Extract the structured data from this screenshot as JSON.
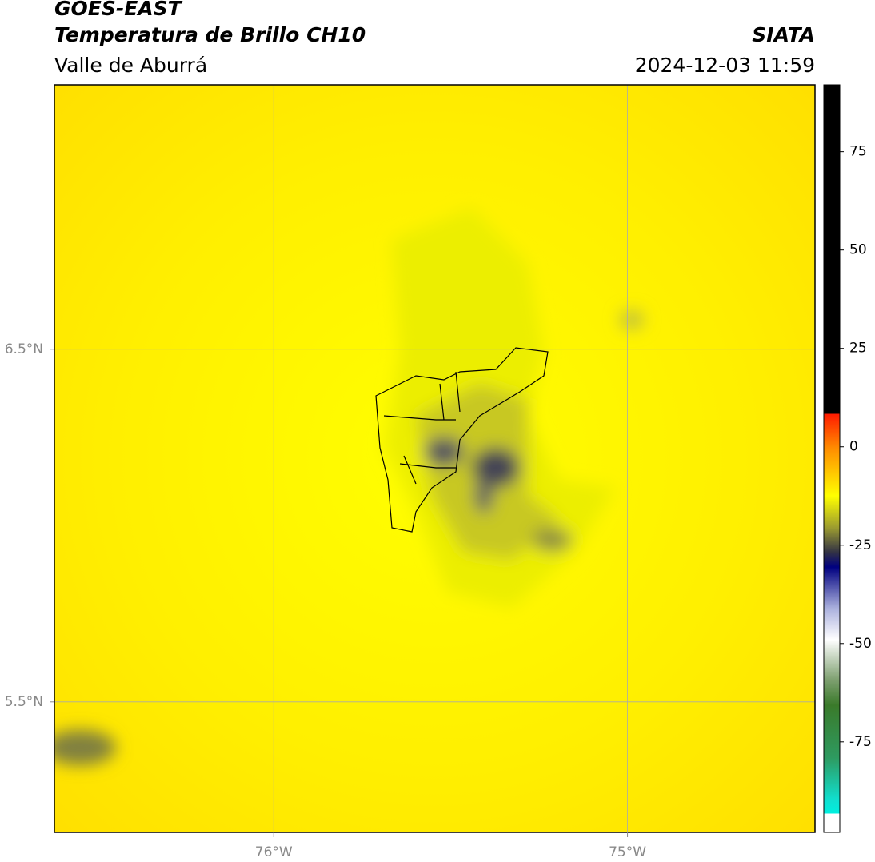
{
  "header": {
    "title": "GOES-EAST",
    "subtitle": "Temperatura de Brillo CH10",
    "region": "Valle de Aburrá",
    "source": "SIATA",
    "timestamp": "2024-12-03 11:59"
  },
  "map": {
    "xlim": [
      -76.62,
      -74.47
    ],
    "ylim": [
      5.13,
      7.25
    ],
    "xticks": [
      {
        "value": -76,
        "label": "76°W"
      },
      {
        "value": -75,
        "label": "75°W"
      }
    ],
    "yticks": [
      {
        "value": 6.5,
        "label": "6.5°N"
      },
      {
        "value": 5.5,
        "label": "5.5°N"
      }
    ],
    "grid": true
  },
  "colorbar": {
    "lim": [
      -98,
      92
    ],
    "ticks": [
      75,
      50,
      25,
      0,
      -25,
      -50,
      -75
    ]
  }
}
